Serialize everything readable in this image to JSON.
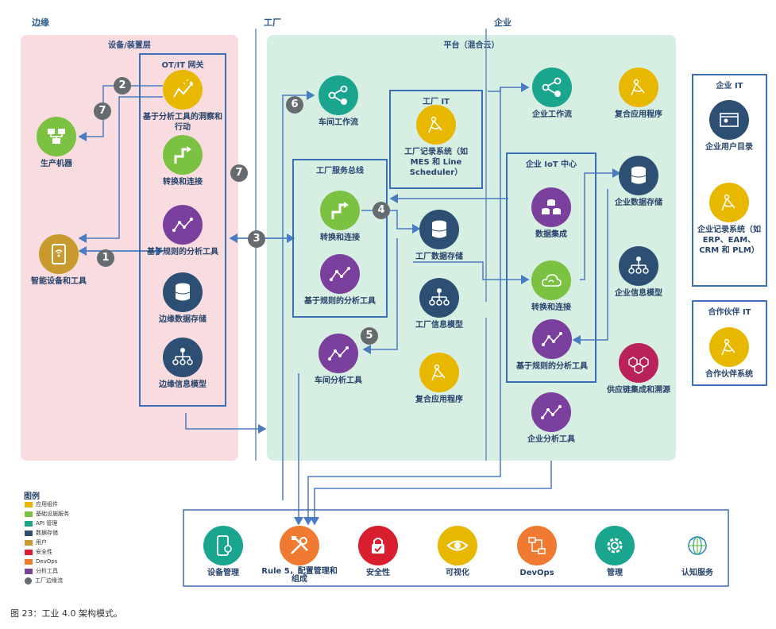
{
  "zones": {
    "edge": "边缘",
    "factory": "工厂",
    "enterprise": "企业"
  },
  "regions": {
    "device_layer": "设备/装置层",
    "platform": "平台（混合云）"
  },
  "boxes": {
    "gateway": "OT/IT 网关",
    "factory_bus": "工厂服务总线",
    "factory_it": "工厂 IT",
    "iot_hub": "企业 IoT 中心",
    "enterprise_it": "企业 IT",
    "partner_it": "合作伙伴 IT"
  },
  "nodes": {
    "production_machine": "生产机器",
    "smart_device": "智能设备和工具",
    "gw_analytics": "基于分析工具的洞察和行动",
    "gw_transform": "转换和连接",
    "gw_rules": "基于规则的分析工具",
    "gw_storage": "边缘数据存储",
    "gw_info_model": "边缘信息模型",
    "shop_workflow": "车间工作流",
    "factory_records": "工厂记录系统（如 MES 和 Line Scheduler）",
    "bus_transform": "转换和连接",
    "bus_rules": "基于规则的分析工具",
    "factory_storage": "工厂数据存储",
    "factory_info_model": "工厂信息模型",
    "shop_analytics": "车间分析工具",
    "factory_composite": "复合应用程序",
    "ent_workflow": "企业工作流",
    "ent_composite": "复合应用程序",
    "data_integration": "数据集成",
    "hub_transform": "转换和连接",
    "hub_rules": "基于规则的分析工具",
    "ent_storage": "企业数据存储",
    "ent_info_model": "企业信息模型",
    "supply_chain": "供应链集成和溯源",
    "ent_analytics": "企业分析工具",
    "ent_user_dir": "企业用户目录",
    "ent_records": "企业记录系统（如 ERP、EAM、CRM 和 PLM）",
    "partner_system": "合作伙伴系统",
    "device_mgmt": "设备管理",
    "config_mgmt": "Rule 5，配置管理和组成",
    "security": "安全性",
    "visualization": "可视化",
    "devops": "DevOps",
    "management": "管理",
    "cognitive": "认知服务"
  },
  "badges": [
    "1",
    "2",
    "3",
    "4",
    "5",
    "6",
    "7",
    "7"
  ],
  "legend": {
    "title": "图例",
    "items": [
      {
        "label": "应用组件",
        "color": "#e8b800"
      },
      {
        "label": "基础设施服务",
        "color": "#7cc242"
      },
      {
        "label": "API 管理",
        "color": "#1aa58f"
      },
      {
        "label": "数据存储",
        "color": "#2e4f74"
      },
      {
        "label": "用户",
        "color": "#c99a2e"
      },
      {
        "label": "安全性",
        "color": "#d91f2f"
      },
      {
        "label": "DevOps",
        "color": "#f07a32"
      },
      {
        "label": "分析工具",
        "color": "#7b3f9e"
      },
      {
        "label": "工厂边缘流",
        "color": "#666b70"
      }
    ]
  },
  "caption": "图 23：工业 4.0 架构模式。",
  "colors": {
    "edge_bg": "#f8dcdf",
    "platform_bg": "#d7eee2",
    "box_border": "#3d6fb6",
    "line": "#4a7cc4",
    "yellow": "#e8b800",
    "green": "#7cc242",
    "teal": "#1aa58f",
    "navy": "#2e4f74",
    "purple": "#7b3f9e",
    "gold": "#c99a2e",
    "red": "#d91f2f",
    "orange": "#f07a32",
    "magenta": "#b8215a"
  }
}
